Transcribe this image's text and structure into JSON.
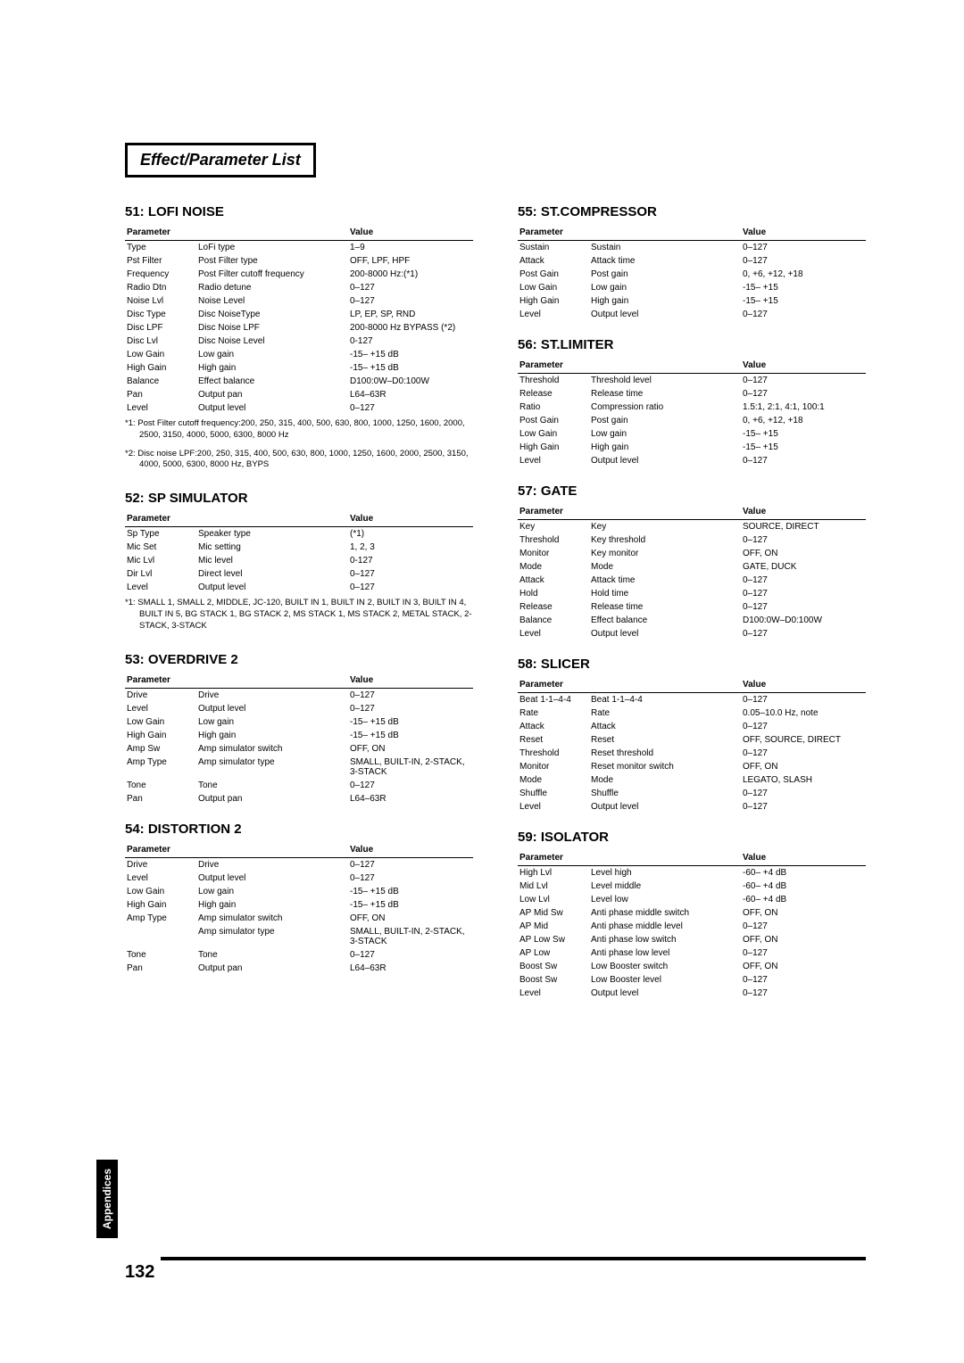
{
  "header": "Effect/Parameter List",
  "sideTab": "Appendices",
  "pageNum": "132",
  "left": [
    {
      "title": "51: LOFI NOISE",
      "rows": [
        [
          "Type",
          "LoFi type",
          "1–9"
        ],
        [
          "Pst Filter",
          "Post Filter type",
          "OFF, LPF, HPF"
        ],
        [
          "Frequency",
          "Post Filter cutoff frequency",
          "200-8000 Hz:(*1)"
        ],
        [
          "Radio Dtn",
          "Radio detune",
          "0–127"
        ],
        [
          "Noise Lvl",
          "Noise Level",
          "0–127"
        ],
        [
          "Disc Type",
          "Disc NoiseType",
          "LP, EP, SP, RND"
        ],
        [
          "Disc LPF",
          "Disc Noise LPF",
          "200-8000 Hz BYPASS (*2)"
        ],
        [
          "Disc Lvl",
          "Disc Noise Level",
          "0-127"
        ],
        [
          "Low Gain",
          "Low gain",
          "-15– +15 dB"
        ],
        [
          "High Gain",
          "High gain",
          "-15– +15 dB"
        ],
        [
          "Balance",
          "Effect balance",
          "D100:0W–D0:100W"
        ],
        [
          "Pan",
          "Output pan",
          "L64–63R"
        ],
        [
          "Level",
          "Output level",
          "0–127"
        ]
      ],
      "notes": [
        "*1:  Post Filter cutoff frequency:200, 250, 315, 400, 500, 630, 800, 1000, 1250, 1600, 2000, 2500, 3150, 4000, 5000, 6300, 8000 Hz",
        "*2:  Disc noise LPF:200, 250, 315, 400, 500, 630, 800, 1000, 1250, 1600, 2000, 2500, 3150, 4000, 5000, 6300, 8000 Hz, BYPS"
      ]
    },
    {
      "title": "52: SP SIMULATOR",
      "rows": [
        [
          "Sp Type",
          "Speaker type",
          "(*1)"
        ],
        [
          "Mic Set",
          "Mic setting",
          "1, 2, 3"
        ],
        [
          "Mic Lvl",
          "Mic level",
          "0-127"
        ],
        [
          "Dir Lvl",
          "Direct level",
          "0–127"
        ],
        [
          "Level",
          "Output level",
          "0–127"
        ]
      ],
      "notes": [
        "*1:  SMALL 1, SMALL 2, MIDDLE, JC-120, BUILT IN 1, BUILT IN 2, BUILT IN 3, BUILT IN 4, BUILT IN 5, BG STACK 1, BG STACK 2, MS STACK 1, MS STACK 2, METAL STACK, 2-STACK, 3-STACK"
      ]
    },
    {
      "title": "53: OVERDRIVE 2",
      "rows": [
        [
          "Drive",
          "Drive",
          "0–127"
        ],
        [
          "Level",
          "Output level",
          "0–127"
        ],
        [
          "Low Gain",
          "Low gain",
          "-15– +15 dB"
        ],
        [
          "High Gain",
          "High gain",
          "-15– +15 dB"
        ],
        [
          "Amp Sw",
          "Amp simulator switch",
          "OFF, ON"
        ],
        [
          "Amp Type",
          "Amp simulator type",
          "SMALL, BUILT-IN, 2-STACK, 3-STACK"
        ],
        [
          "Tone",
          "Tone",
          "0–127"
        ],
        [
          "Pan",
          "Output pan",
          "L64–63R"
        ]
      ]
    },
    {
      "title": "54: DISTORTION 2",
      "rows": [
        [
          "Drive",
          "Drive",
          "0–127"
        ],
        [
          "Level",
          "Output level",
          "0–127"
        ],
        [
          "Low Gain",
          "Low gain",
          "-15– +15 dB"
        ],
        [
          "High Gain",
          "High gain",
          "-15– +15 dB"
        ],
        [
          "Amp Type",
          "Amp simulator switch",
          "OFF, ON"
        ],
        [
          "",
          "Amp simulator type",
          "SMALL, BUILT-IN, 2-STACK, 3-STACK"
        ],
        [
          "Tone",
          "Tone",
          "0–127"
        ],
        [
          "Pan",
          "Output pan",
          "L64–63R"
        ]
      ]
    }
  ],
  "right": [
    {
      "title": "55: ST.COMPRESSOR",
      "rows": [
        [
          "Sustain",
          "Sustain",
          "0–127"
        ],
        [
          "Attack",
          "Attack time",
          "0–127"
        ],
        [
          "Post Gain",
          "Post gain",
          "0, +6, +12, +18"
        ],
        [
          "Low Gain",
          "Low gain",
          "-15– +15"
        ],
        [
          "High Gain",
          "High gain",
          "-15– +15"
        ],
        [
          "Level",
          "Output level",
          "0–127"
        ]
      ]
    },
    {
      "title": "56: ST.LIMITER",
      "rows": [
        [
          "Threshold",
          "Threshold level",
          "0–127"
        ],
        [
          "Release",
          "Release time",
          "0–127"
        ],
        [
          "Ratio",
          "Compression ratio",
          "1.5:1, 2:1, 4:1, 100:1"
        ],
        [
          "Post Gain",
          "Post gain",
          "0, +6, +12, +18"
        ],
        [
          "Low Gain",
          "Low gain",
          "-15– +15"
        ],
        [
          "High Gain",
          "High gain",
          "-15– +15"
        ],
        [
          "Level",
          "Output level",
          "0–127"
        ]
      ]
    },
    {
      "title": "57: GATE",
      "rows": [
        [
          "Key",
          "Key",
          "SOURCE, DIRECT"
        ],
        [
          "Threshold",
          "Key threshold",
          "0–127"
        ],
        [
          "Monitor",
          "Key monitor",
          "OFF, ON"
        ],
        [
          "Mode",
          "Mode",
          "GATE, DUCK"
        ],
        [
          "Attack",
          "Attack time",
          "0–127"
        ],
        [
          "Hold",
          "Hold time",
          "0–127"
        ],
        [
          "Release",
          "Release time",
          "0–127"
        ],
        [
          "Balance",
          "Effect balance",
          "D100:0W–D0:100W"
        ],
        [
          "Level",
          "Output level",
          "0–127"
        ]
      ]
    },
    {
      "title": "58: SLICER",
      "rows": [
        [
          "Beat 1-1–4-4",
          "Beat 1-1–4-4",
          "0–127"
        ],
        [
          "Rate",
          "Rate",
          "0.05–10.0 Hz, note"
        ],
        [
          "Attack",
          "Attack",
          "0–127"
        ],
        [
          "Reset",
          "Reset",
          "OFF, SOURCE, DIRECT"
        ],
        [
          "Threshold",
          "Reset threshold",
          "0–127"
        ],
        [
          "Monitor",
          "Reset monitor switch",
          "OFF, ON"
        ],
        [
          "Mode",
          "Mode",
          "LEGATO, SLASH"
        ],
        [
          "Shuffle",
          "Shuffle",
          "0–127"
        ],
        [
          "Level",
          "Output level",
          "0–127"
        ]
      ]
    },
    {
      "title": "59: ISOLATOR",
      "rows": [
        [
          "High Lvl",
          "Level high",
          "-60– +4 dB"
        ],
        [
          "Mid Lvl",
          "Level middle",
          "-60– +4 dB"
        ],
        [
          "Low Lvl",
          "Level low",
          "-60– +4 dB"
        ],
        [
          "AP Mid Sw",
          "Anti phase middle switch",
          "OFF, ON"
        ],
        [
          "AP Mid",
          "Anti phase middle level",
          "0–127"
        ],
        [
          "AP Low Sw",
          "Anti phase low switch",
          "OFF, ON"
        ],
        [
          "AP Low",
          "Anti phase low level",
          "0–127"
        ],
        [
          "Boost Sw",
          "Low Booster switch",
          "OFF, ON"
        ],
        [
          "Boost Sw",
          "Low Booster level",
          "0–127"
        ],
        [
          "Level",
          "Output level",
          "0–127"
        ]
      ]
    }
  ],
  "th": {
    "p": "Parameter",
    "v": "Value"
  }
}
